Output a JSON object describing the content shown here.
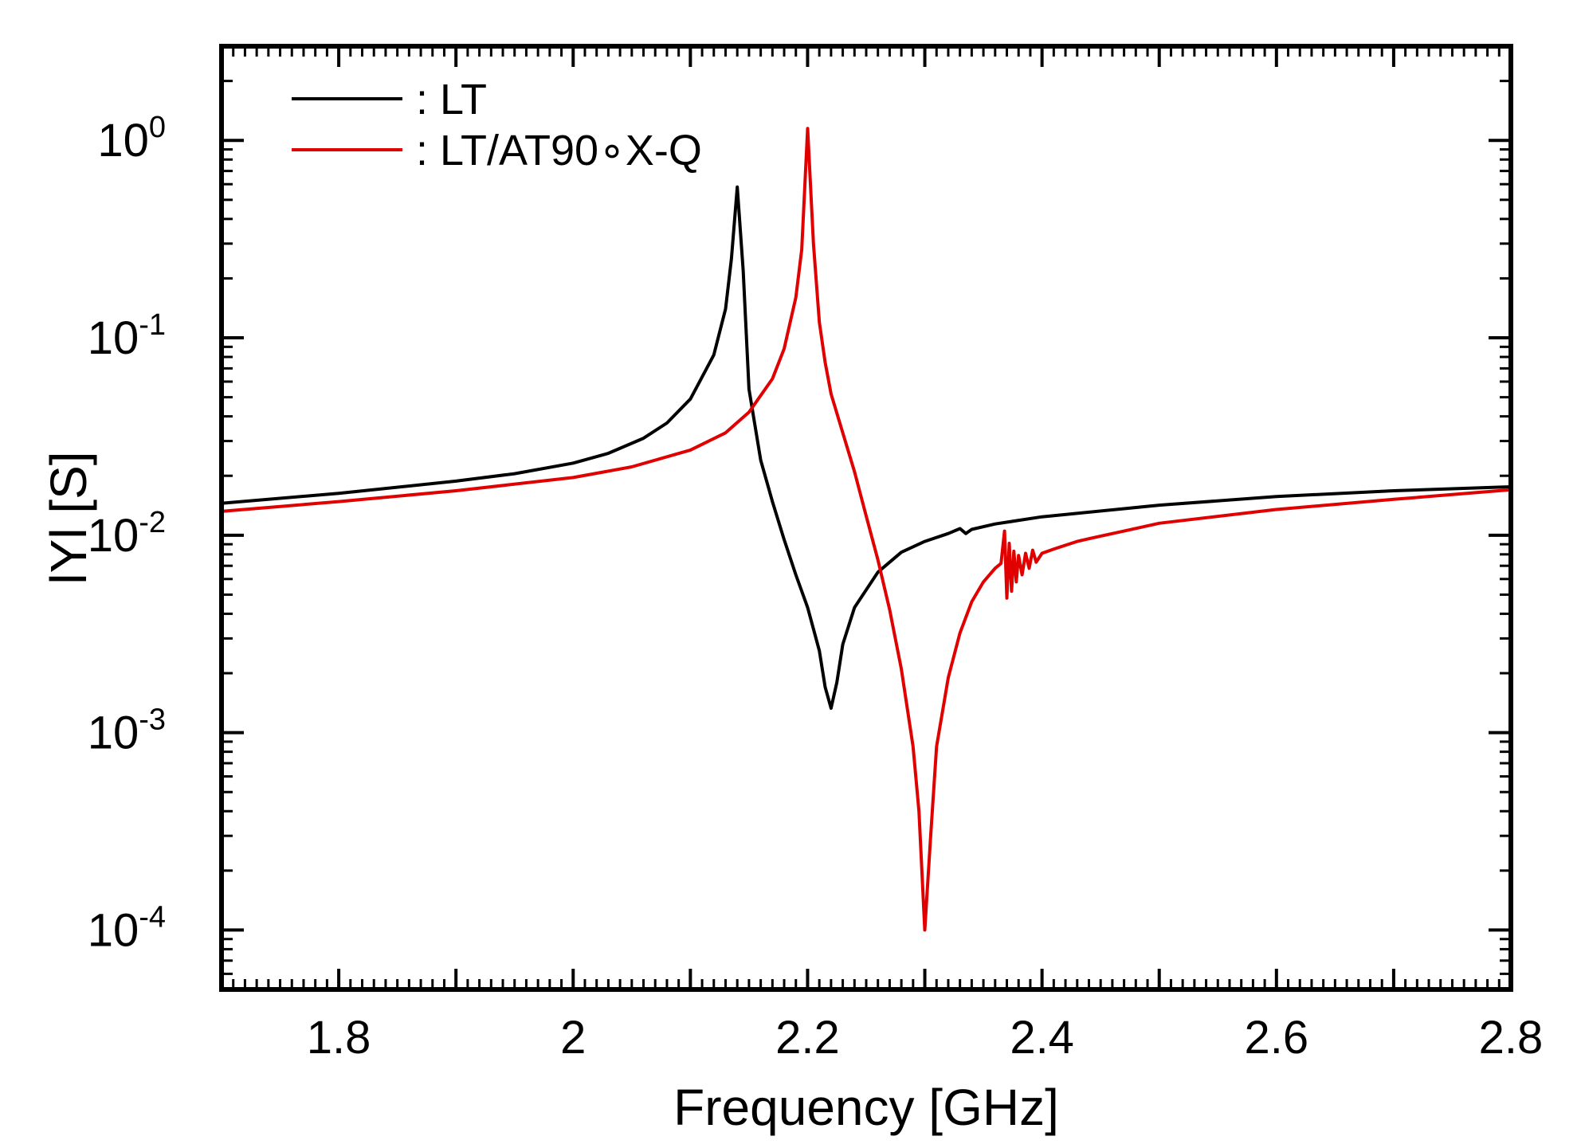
{
  "chart_data": {
    "type": "line",
    "xlabel": "Frequency  [GHz]",
    "ylabel": "lYl  [S]",
    "xlim": [
      1.7,
      2.8
    ],
    "ylim": [
      5e-05,
      3.0
    ],
    "yscale": "log",
    "x_ticks": [
      {
        "value": 1.8,
        "label": "1.8"
      },
      {
        "value": 2.0,
        "label": "2"
      },
      {
        "value": 2.2,
        "label": "2.2"
      },
      {
        "value": 2.4,
        "label": "2.4"
      },
      {
        "value": 2.6,
        "label": "2.6"
      },
      {
        "value": 2.8,
        "label": "2.8"
      }
    ],
    "y_ticks": [
      {
        "value": 1,
        "base": "10",
        "exp": "0"
      },
      {
        "value": 0.1,
        "base": "10",
        "exp": "-1"
      },
      {
        "value": 0.01,
        "base": "10",
        "exp": "-2"
      },
      {
        "value": 0.001,
        "base": "10",
        "exp": "-3"
      },
      {
        "value": 0.0001,
        "base": "10",
        "exp": "-4"
      }
    ],
    "grid": false,
    "legend_position": "top-left",
    "series": [
      {
        "name": ": LT",
        "color": "#000000",
        "x": [
          1.7,
          1.8,
          1.9,
          1.95,
          2.0,
          2.03,
          2.06,
          2.08,
          2.1,
          2.12,
          2.13,
          2.135,
          2.14,
          2.145,
          2.15,
          2.16,
          2.17,
          2.18,
          2.19,
          2.2,
          2.21,
          2.215,
          2.22,
          2.225,
          2.23,
          2.24,
          2.26,
          2.28,
          2.3,
          2.32,
          2.33,
          2.335,
          2.34,
          2.36,
          2.4,
          2.5,
          2.6,
          2.7,
          2.8
        ],
        "y": [
          0.0145,
          0.0163,
          0.0188,
          0.0205,
          0.0232,
          0.026,
          0.031,
          0.037,
          0.049,
          0.082,
          0.14,
          0.25,
          0.58,
          0.22,
          0.055,
          0.024,
          0.0148,
          0.0095,
          0.0063,
          0.0043,
          0.0026,
          0.0017,
          0.00133,
          0.0018,
          0.0028,
          0.0043,
          0.0065,
          0.0082,
          0.0093,
          0.0102,
          0.0108,
          0.0102,
          0.0107,
          0.0114,
          0.0124,
          0.0142,
          0.0157,
          0.0168,
          0.0176
        ]
      },
      {
        "name": ": LT/AT90∘X-Q",
        "color": "#e00000",
        "x": [
          1.7,
          1.8,
          1.9,
          2.0,
          2.05,
          2.1,
          2.13,
          2.15,
          2.17,
          2.18,
          2.19,
          2.195,
          2.2,
          2.205,
          2.21,
          2.215,
          2.22,
          2.23,
          2.24,
          2.25,
          2.26,
          2.27,
          2.28,
          2.29,
          2.295,
          2.3,
          2.305,
          2.31,
          2.32,
          2.33,
          2.34,
          2.35,
          2.36,
          2.365,
          2.368,
          2.37,
          2.372,
          2.374,
          2.376,
          2.378,
          2.38,
          2.383,
          2.386,
          2.389,
          2.392,
          2.395,
          2.4,
          2.41,
          2.42,
          2.43,
          2.44,
          2.45,
          2.47,
          2.5,
          2.6,
          2.7,
          2.8
        ],
        "y": [
          0.0132,
          0.0148,
          0.0168,
          0.0196,
          0.0222,
          0.027,
          0.033,
          0.042,
          0.062,
          0.088,
          0.16,
          0.28,
          1.15,
          0.3,
          0.12,
          0.075,
          0.052,
          0.033,
          0.021,
          0.0125,
          0.0075,
          0.0042,
          0.0021,
          0.00085,
          0.0004,
          0.0001,
          0.0003,
          0.00085,
          0.0019,
          0.0032,
          0.0046,
          0.0058,
          0.0068,
          0.0072,
          0.0105,
          0.0048,
          0.0091,
          0.0052,
          0.0083,
          0.0058,
          0.0079,
          0.0063,
          0.0081,
          0.0068,
          0.0084,
          0.0073,
          0.0081,
          0.0085,
          0.0089,
          0.0093,
          0.0096,
          0.0099,
          0.0105,
          0.0115,
          0.0135,
          0.0152,
          0.017
        ]
      }
    ]
  }
}
